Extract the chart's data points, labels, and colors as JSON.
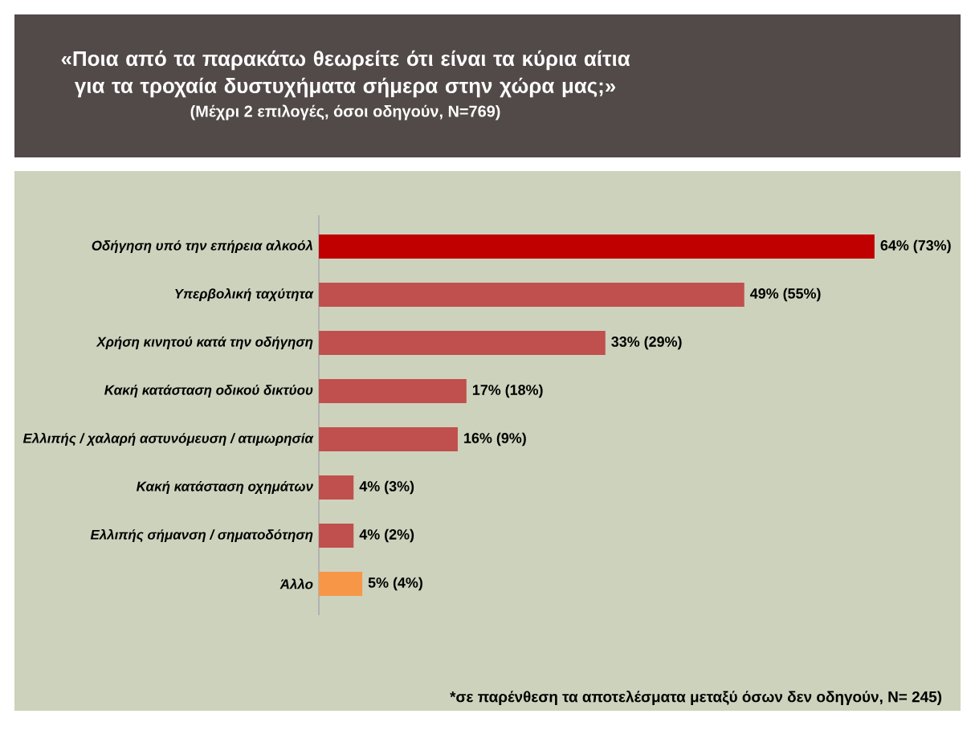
{
  "chart_data": {
    "type": "bar",
    "orientation": "horizontal",
    "title": "«Ποια από τα παρακάτω θεωρείτε ότι είναι τα κύρια αίτια για τα τροχαία δυστυχήματα σήμερα στην χώρα μας;»",
    "subtitle": "(Μέχρι 2 επιλογές, όσοι οδηγούν, N=769)",
    "categories": [
      "Οδήγηση υπό την επήρεια αλκοόλ",
      "Υπερβολική ταχύτητα",
      "Χρήση κινητού κατά την οδήγηση",
      "Κακή κατάσταση οδικού δικτύου",
      "Ελλιπής / χαλαρή αστυνόμευση / ατιμωρησία",
      "Κακή κατάσταση οχημάτων",
      "Ελλιπής σήμανση / σηματοδότηση",
      "Άλλο"
    ],
    "values": [
      64,
      49,
      33,
      17,
      16,
      4,
      4,
      5
    ],
    "value_labels": [
      "64% (73%)",
      "49% (55%)",
      "33% (29%)",
      "17% (18%)",
      "16% (9%)",
      "4% (3%)",
      "4% (2%)",
      "5% (4%)"
    ],
    "colors": [
      "#c00000",
      "#c0504d",
      "#c0504d",
      "#c0504d",
      "#c0504d",
      "#c0504d",
      "#c0504d",
      "#f79646"
    ],
    "xlim": [
      0,
      74
    ],
    "tick_labels": "y",
    "annotations": [
      "*σε παρένθεση τα αποτελέσματα μεταξύ όσων δεν οδηγούν, N= 245)"
    ]
  }
}
